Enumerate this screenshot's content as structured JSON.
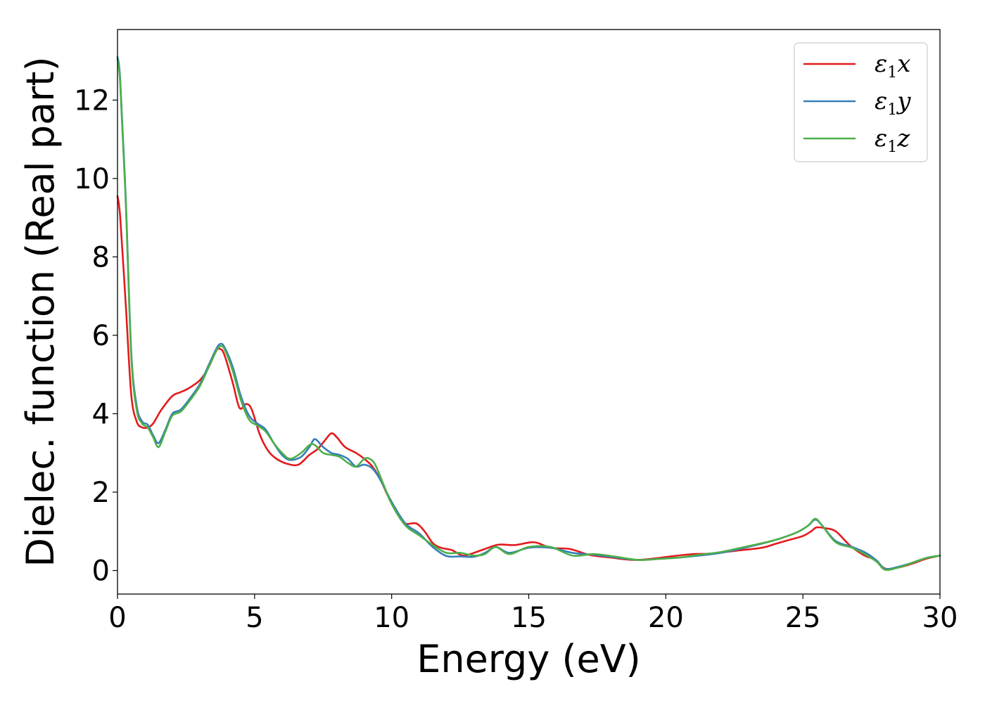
{
  "chart_data": {
    "type": "line",
    "xlabel": "Energy (eV)",
    "ylabel": "Dielec. function (Real part)",
    "xlim": [
      0,
      30
    ],
    "ylim": [
      -0.6,
      13.8
    ],
    "xticks": [
      0,
      5,
      10,
      15,
      20,
      25,
      30
    ],
    "yticks": [
      0,
      2,
      4,
      6,
      8,
      10,
      12
    ],
    "grid": false,
    "legend_position": "top-right",
    "series": [
      {
        "name": "ε1x",
        "legend": {
          "base": "ε",
          "sub": "1",
          "var": "x"
        },
        "color": "#e41a1c",
        "x": [
          0,
          0.1,
          0.3,
          0.5,
          0.7,
          0.9,
          1.1,
          1.3,
          1.6,
          2.0,
          2.3,
          2.6,
          3.0,
          3.3,
          3.6,
          3.75,
          3.9,
          4.2,
          4.45,
          4.7,
          4.9,
          5.2,
          5.5,
          5.8,
          6.2,
          6.6,
          7.0,
          7.3,
          7.6,
          7.8,
          8.0,
          8.3,
          8.7,
          9.0,
          9.3,
          9.6,
          9.9,
          10.2,
          10.5,
          10.9,
          11.2,
          11.5,
          11.8,
          12.2,
          12.6,
          13.0,
          13.4,
          13.9,
          14.5,
          15.2,
          15.8,
          16.5,
          17.2,
          18.0,
          18.8,
          19.5,
          20.3,
          21.0,
          21.6,
          22.5,
          23.5,
          24.0,
          24.5,
          25.0,
          25.3,
          25.5,
          25.8,
          26.2,
          26.7,
          27.2,
          27.6,
          28.0,
          28.5,
          29.0,
          29.5,
          30.0
        ],
        "y": [
          9.55,
          9.0,
          6.8,
          4.5,
          3.8,
          3.65,
          3.65,
          3.75,
          4.1,
          4.45,
          4.55,
          4.65,
          4.85,
          5.15,
          5.6,
          5.65,
          5.5,
          4.8,
          4.15,
          4.25,
          4.1,
          3.45,
          3.05,
          2.85,
          2.72,
          2.7,
          2.95,
          3.1,
          3.35,
          3.5,
          3.4,
          3.15,
          3.0,
          2.85,
          2.65,
          2.3,
          1.85,
          1.45,
          1.2,
          1.2,
          1.0,
          0.7,
          0.58,
          0.52,
          0.38,
          0.45,
          0.55,
          0.66,
          0.65,
          0.72,
          0.58,
          0.55,
          0.4,
          0.33,
          0.27,
          0.3,
          0.37,
          0.42,
          0.43,
          0.5,
          0.58,
          0.68,
          0.78,
          0.88,
          1.0,
          1.1,
          1.08,
          1.0,
          0.65,
          0.4,
          0.28,
          0.05,
          0.08,
          0.18,
          0.3,
          0.38
        ]
      },
      {
        "name": "ε1y",
        "legend": {
          "base": "ε",
          "sub": "1",
          "var": "y"
        },
        "color": "#377eb8",
        "x": [
          0,
          0.1,
          0.3,
          0.5,
          0.7,
          0.9,
          1.1,
          1.3,
          1.5,
          1.75,
          2.0,
          2.3,
          2.6,
          3.0,
          3.3,
          3.6,
          3.75,
          3.9,
          4.2,
          4.5,
          4.8,
          5.1,
          5.4,
          5.7,
          6.0,
          6.3,
          6.7,
          7.0,
          7.2,
          7.5,
          7.8,
          8.1,
          8.4,
          8.7,
          9.0,
          9.3,
          9.6,
          10.0,
          10.5,
          11.0,
          11.5,
          12.0,
          12.5,
          13.0,
          13.4,
          13.8,
          14.3,
          15.0,
          15.8,
          16.6,
          17.4,
          18.2,
          19.0,
          19.8,
          20.5,
          21.2,
          22.0,
          23.0,
          24.0,
          24.8,
          25.2,
          25.45,
          25.7,
          26.2,
          26.8,
          27.3,
          27.7,
          28.0,
          28.5,
          29.0,
          29.5,
          30.0
        ],
        "y": [
          13.1,
          12.5,
          9.5,
          5.6,
          4.2,
          3.8,
          3.72,
          3.45,
          3.25,
          3.6,
          4.0,
          4.1,
          4.35,
          4.75,
          5.2,
          5.65,
          5.78,
          5.7,
          5.2,
          4.45,
          3.95,
          3.75,
          3.6,
          3.25,
          2.95,
          2.82,
          2.9,
          3.15,
          3.35,
          3.15,
          3.0,
          2.95,
          2.85,
          2.65,
          2.7,
          2.6,
          2.3,
          1.75,
          1.2,
          0.95,
          0.6,
          0.37,
          0.36,
          0.35,
          0.45,
          0.6,
          0.45,
          0.58,
          0.58,
          0.45,
          0.4,
          0.33,
          0.27,
          0.3,
          0.33,
          0.38,
          0.45,
          0.6,
          0.78,
          0.98,
          1.15,
          1.3,
          1.15,
          0.75,
          0.6,
          0.45,
          0.25,
          0.04,
          0.1,
          0.2,
          0.32,
          0.38
        ]
      },
      {
        "name": "ε1z",
        "legend": {
          "base": "ε",
          "sub": "1",
          "var": "z"
        },
        "color": "#4daf4a",
        "x": [
          0,
          0.1,
          0.3,
          0.5,
          0.7,
          0.9,
          1.1,
          1.3,
          1.5,
          1.75,
          2.0,
          2.3,
          2.6,
          3.0,
          3.3,
          3.6,
          3.75,
          3.9,
          4.2,
          4.5,
          4.8,
          5.1,
          5.4,
          5.7,
          6.0,
          6.3,
          6.7,
          7.0,
          7.2,
          7.5,
          7.8,
          8.1,
          8.4,
          8.7,
          9.0,
          9.2,
          9.4,
          9.7,
          10.0,
          10.5,
          11.0,
          11.5,
          12.0,
          12.5,
          13.0,
          13.4,
          13.8,
          14.3,
          15.0,
          15.8,
          16.6,
          17.4,
          18.2,
          19.0,
          19.8,
          20.5,
          21.2,
          22.0,
          23.0,
          24.0,
          24.8,
          25.2,
          25.45,
          25.7,
          26.2,
          26.8,
          27.3,
          27.7,
          28.0,
          28.5,
          29.0,
          29.5,
          30.0
        ],
        "y": [
          13.05,
          12.4,
          9.4,
          5.5,
          4.1,
          3.75,
          3.65,
          3.4,
          3.15,
          3.55,
          3.95,
          4.05,
          4.3,
          4.7,
          5.15,
          5.6,
          5.72,
          5.65,
          5.1,
          4.35,
          3.85,
          3.7,
          3.55,
          3.25,
          3.0,
          2.85,
          3.0,
          3.2,
          3.2,
          3.0,
          2.95,
          2.9,
          2.75,
          2.65,
          2.85,
          2.85,
          2.7,
          2.2,
          1.7,
          1.15,
          0.9,
          0.65,
          0.45,
          0.45,
          0.38,
          0.42,
          0.6,
          0.42,
          0.6,
          0.6,
          0.38,
          0.42,
          0.35,
          0.27,
          0.3,
          0.33,
          0.4,
          0.47,
          0.62,
          0.78,
          0.98,
          1.15,
          1.32,
          1.15,
          0.72,
          0.58,
          0.4,
          0.22,
          0.02,
          0.08,
          0.2,
          0.32,
          0.38
        ]
      }
    ]
  }
}
